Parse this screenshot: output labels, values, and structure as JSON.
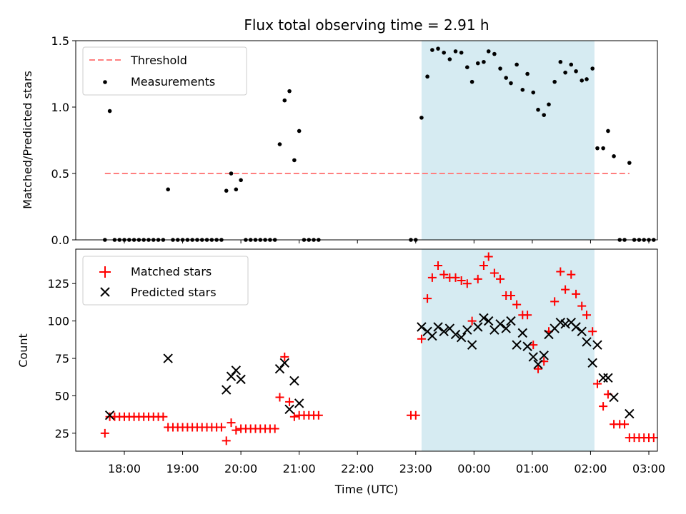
{
  "chart_data": [
    {
      "type": "scatter",
      "title_prefix": "Flux total observing time = ",
      "title_value": "2.91",
      "title_unit": " h",
      "ylabel": "Matched/Predicted stars",
      "ylim": [
        0,
        1.5
      ],
      "yticks": [
        "0.0",
        "0.5",
        "1.0",
        "1.5"
      ],
      "legend_position": "top-left",
      "threshold": {
        "label": "Threshold",
        "value": 0.5,
        "x_start": "17:40",
        "x_end": "02:40",
        "color": "#ff7f7f"
      },
      "highlight": {
        "start": "23:06",
        "end": "02:04",
        "color": "#add8e6"
      },
      "series": [
        {
          "name": "Measurements",
          "marker": "dot",
          "color": "#000000",
          "points": [
            [
              "17:40",
              0
            ],
            [
              "17:45",
              0.97
            ],
            [
              "17:50",
              0
            ],
            [
              "17:55",
              0
            ],
            [
              "18:00",
              0
            ],
            [
              "18:05",
              0
            ],
            [
              "18:10",
              0
            ],
            [
              "18:15",
              0
            ],
            [
              "18:20",
              0
            ],
            [
              "18:25",
              0
            ],
            [
              "18:30",
              0
            ],
            [
              "18:35",
              0
            ],
            [
              "18:40",
              0
            ],
            [
              "18:45",
              0.38
            ],
            [
              "18:50",
              0
            ],
            [
              "18:55",
              0
            ],
            [
              "19:00",
              0
            ],
            [
              "19:05",
              0
            ],
            [
              "19:10",
              0
            ],
            [
              "19:15",
              0
            ],
            [
              "19:20",
              0
            ],
            [
              "19:25",
              0
            ],
            [
              "19:30",
              0
            ],
            [
              "19:35",
              0
            ],
            [
              "19:40",
              0
            ],
            [
              "19:45",
              0.37
            ],
            [
              "19:50",
              0.5
            ],
            [
              "19:55",
              0.38
            ],
            [
              "20:00",
              0.45
            ],
            [
              "20:05",
              0
            ],
            [
              "20:10",
              0
            ],
            [
              "20:15",
              0
            ],
            [
              "20:20",
              0
            ],
            [
              "20:25",
              0
            ],
            [
              "20:30",
              0
            ],
            [
              "20:35",
              0
            ],
            [
              "20:40",
              0.72
            ],
            [
              "20:45",
              1.05
            ],
            [
              "20:50",
              1.12
            ],
            [
              "20:55",
              0.6
            ],
            [
              "21:00",
              0.82
            ],
            [
              "21:05",
              0
            ],
            [
              "21:10",
              0
            ],
            [
              "21:15",
              0
            ],
            [
              "21:20",
              0
            ],
            [
              "22:55",
              0
            ],
            [
              "23:00",
              0
            ],
            [
              "23:06",
              0.92
            ],
            [
              "23:12",
              1.23
            ],
            [
              "23:17",
              1.43
            ],
            [
              "23:23",
              1.44
            ],
            [
              "23:29",
              1.41
            ],
            [
              "23:35",
              1.36
            ],
            [
              "23:41",
              1.42
            ],
            [
              "23:47",
              1.41
            ],
            [
              "23:53",
              1.3
            ],
            [
              "23:58",
              1.19
            ],
            [
              "00:04",
              1.33
            ],
            [
              "00:10",
              1.34
            ],
            [
              "00:15",
              1.42
            ],
            [
              "00:21",
              1.4
            ],
            [
              "00:27",
              1.29
            ],
            [
              "00:33",
              1.22
            ],
            [
              "00:38",
              1.18
            ],
            [
              "00:44",
              1.32
            ],
            [
              "00:50",
              1.13
            ],
            [
              "00:55",
              1.25
            ],
            [
              "01:01",
              1.11
            ],
            [
              "01:06",
              0.98
            ],
            [
              "01:12",
              0.94
            ],
            [
              "01:17",
              1.02
            ],
            [
              "01:23",
              1.19
            ],
            [
              "01:29",
              1.34
            ],
            [
              "01:34",
              1.26
            ],
            [
              "01:40",
              1.32
            ],
            [
              "01:45",
              1.27
            ],
            [
              "01:51",
              1.2
            ],
            [
              "01:56",
              1.21
            ],
            [
              "02:02",
              1.29
            ],
            [
              "02:07",
              0.69
            ],
            [
              "02:13",
              0.69
            ],
            [
              "02:18",
              0.82
            ],
            [
              "02:24",
              0.63
            ],
            [
              "02:30",
              0
            ],
            [
              "02:35",
              0
            ],
            [
              "02:40",
              0.58
            ],
            [
              "02:45",
              0
            ],
            [
              "02:50",
              0
            ],
            [
              "02:55",
              0
            ],
            [
              "03:00",
              0
            ],
            [
              "03:05",
              0
            ]
          ]
        }
      ]
    },
    {
      "type": "scatter",
      "ylabel": "Count",
      "xlabel": "Time (UTC)",
      "ylim": [
        13,
        148
      ],
      "yticks": [
        "25",
        "50",
        "75",
        "100",
        "125"
      ],
      "xticks": [
        "18:00",
        "19:00",
        "20:00",
        "21:00",
        "22:00",
        "23:00",
        "00:00",
        "01:00",
        "02:00",
        "03:00"
      ],
      "legend_position": "top-left",
      "highlight": {
        "start": "23:06",
        "end": "02:04",
        "color": "#add8e6"
      },
      "series": [
        {
          "name": "Matched stars",
          "marker": "plus",
          "color": "#ff0000",
          "points": [
            [
              "17:40",
              25
            ],
            [
              "17:45",
              36
            ],
            [
              "17:50",
              36
            ],
            [
              "17:55",
              36
            ],
            [
              "18:00",
              36
            ],
            [
              "18:05",
              36
            ],
            [
              "18:10",
              36
            ],
            [
              "18:15",
              36
            ],
            [
              "18:20",
              36
            ],
            [
              "18:25",
              36
            ],
            [
              "18:30",
              36
            ],
            [
              "18:35",
              36
            ],
            [
              "18:40",
              36
            ],
            [
              "18:45",
              29
            ],
            [
              "18:50",
              29
            ],
            [
              "18:55",
              29
            ],
            [
              "19:00",
              29
            ],
            [
              "19:05",
              29
            ],
            [
              "19:10",
              29
            ],
            [
              "19:15",
              29
            ],
            [
              "19:20",
              29
            ],
            [
              "19:25",
              29
            ],
            [
              "19:30",
              29
            ],
            [
              "19:35",
              29
            ],
            [
              "19:40",
              29
            ],
            [
              "19:45",
              20
            ],
            [
              "19:50",
              32
            ],
            [
              "19:55",
              27
            ],
            [
              "20:00",
              28
            ],
            [
              "20:05",
              28
            ],
            [
              "20:10",
              28
            ],
            [
              "20:15",
              28
            ],
            [
              "20:20",
              28
            ],
            [
              "20:25",
              28
            ],
            [
              "20:30",
              28
            ],
            [
              "20:35",
              28
            ],
            [
              "20:40",
              49
            ],
            [
              "20:45",
              76
            ],
            [
              "20:50",
              46
            ],
            [
              "20:55",
              36
            ],
            [
              "21:00",
              37
            ],
            [
              "21:05",
              37
            ],
            [
              "21:10",
              37
            ],
            [
              "21:15",
              37
            ],
            [
              "21:20",
              37
            ],
            [
              "22:55",
              37
            ],
            [
              "23:00",
              37
            ],
            [
              "23:06",
              88
            ],
            [
              "23:12",
              115
            ],
            [
              "23:17",
              129
            ],
            [
              "23:23",
              137
            ],
            [
              "23:29",
              131
            ],
            [
              "23:35",
              129
            ],
            [
              "23:41",
              129
            ],
            [
              "23:47",
              127
            ],
            [
              "23:53",
              125
            ],
            [
              "23:58",
              100
            ],
            [
              "00:04",
              128
            ],
            [
              "00:10",
              137
            ],
            [
              "00:15",
              143
            ],
            [
              "00:21",
              132
            ],
            [
              "00:27",
              128
            ],
            [
              "00:33",
              117
            ],
            [
              "00:38",
              117
            ],
            [
              "00:44",
              111
            ],
            [
              "00:50",
              104
            ],
            [
              "00:55",
              104
            ],
            [
              "01:01",
              84
            ],
            [
              "01:06",
              68
            ],
            [
              "01:12",
              73
            ],
            [
              "01:17",
              93
            ],
            [
              "01:23",
              113
            ],
            [
              "01:29",
              133
            ],
            [
              "01:34",
              121
            ],
            [
              "01:40",
              131
            ],
            [
              "01:45",
              118
            ],
            [
              "01:51",
              110
            ],
            [
              "01:56",
              104
            ],
            [
              "02:02",
              93
            ],
            [
              "02:07",
              58
            ],
            [
              "02:13",
              43
            ],
            [
              "02:18",
              51
            ],
            [
              "02:24",
              31
            ],
            [
              "02:30",
              31
            ],
            [
              "02:35",
              31
            ],
            [
              "02:40",
              22
            ],
            [
              "02:45",
              22
            ],
            [
              "02:50",
              22
            ],
            [
              "02:55",
              22
            ],
            [
              "03:00",
              22
            ],
            [
              "03:05",
              22
            ]
          ]
        },
        {
          "name": "Predicted stars",
          "marker": "x",
          "color": "#000000",
          "points": [
            [
              "17:45",
              37
            ],
            [
              "18:45",
              75
            ],
            [
              "19:45",
              54
            ],
            [
              "19:50",
              63
            ],
            [
              "19:55",
              67
            ],
            [
              "20:00",
              61
            ],
            [
              "20:40",
              68
            ],
            [
              "20:45",
              72
            ],
            [
              "20:50",
              41
            ],
            [
              "20:55",
              60
            ],
            [
              "21:00",
              45
            ],
            [
              "23:06",
              96
            ],
            [
              "23:12",
              93
            ],
            [
              "23:17",
              90
            ],
            [
              "23:23",
              96
            ],
            [
              "23:29",
              93
            ],
            [
              "23:35",
              95
            ],
            [
              "23:41",
              91
            ],
            [
              "23:47",
              89
            ],
            [
              "23:53",
              94
            ],
            [
              "23:58",
              84
            ],
            [
              "00:04",
              96
            ],
            [
              "00:10",
              102
            ],
            [
              "00:15",
              100
            ],
            [
              "00:21",
              94
            ],
            [
              "00:27",
              98
            ],
            [
              "00:33",
              95
            ],
            [
              "00:38",
              100
            ],
            [
              "00:44",
              84
            ],
            [
              "00:50",
              92
            ],
            [
              "00:55",
              83
            ],
            [
              "01:01",
              76
            ],
            [
              "01:06",
              71
            ],
            [
              "01:12",
              77
            ],
            [
              "01:17",
              91
            ],
            [
              "01:23",
              95
            ],
            [
              "01:29",
              99
            ],
            [
              "01:34",
              98
            ],
            [
              "01:40",
              99
            ],
            [
              "01:45",
              96
            ],
            [
              "01:51",
              93
            ],
            [
              "01:56",
              86
            ],
            [
              "02:02",
              72
            ],
            [
              "02:07",
              84
            ],
            [
              "02:13",
              62
            ],
            [
              "02:18",
              62
            ],
            [
              "02:24",
              49
            ],
            [
              "02:40",
              38
            ]
          ]
        }
      ]
    }
  ]
}
